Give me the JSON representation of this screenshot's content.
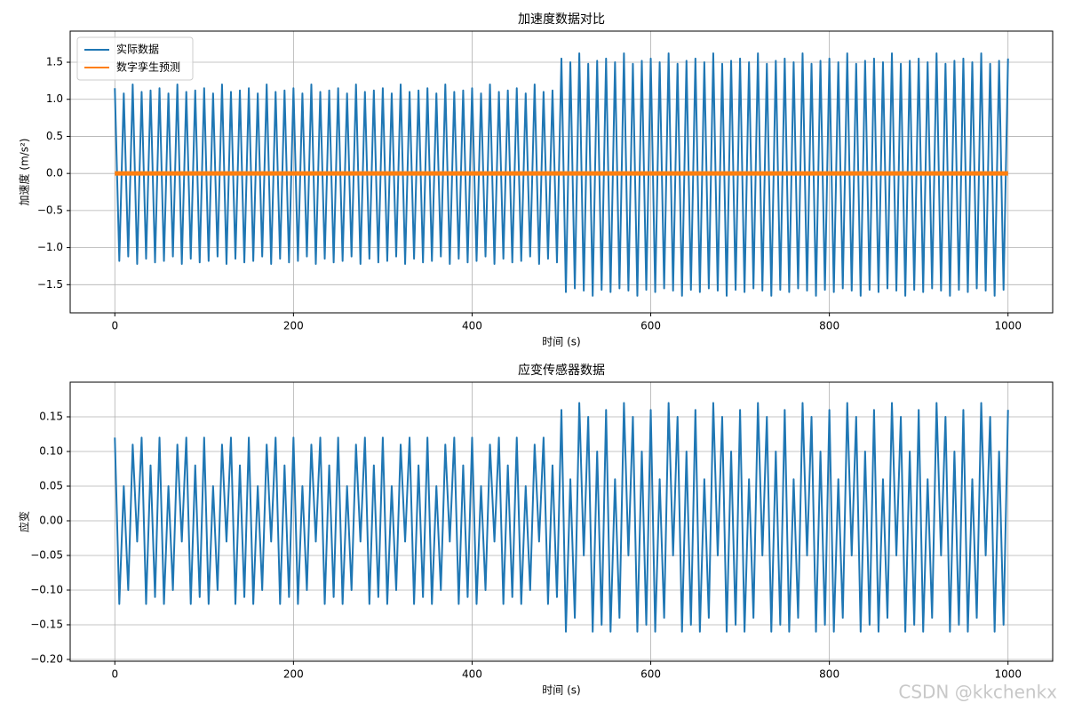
{
  "chart_data": [
    {
      "type": "line",
      "title": "加速度数据对比",
      "xlabel": "时间 (s)",
      "ylabel": "加速度 (m/s²)",
      "grid": true,
      "legend": "upper left",
      "xlim": [
        -50,
        1050
      ],
      "ylim": [
        -1.88,
        1.92
      ],
      "xticks": [
        0,
        200,
        400,
        600,
        800,
        1000
      ],
      "yticks": [
        {
          "value": -1.5,
          "label": "−1.5"
        },
        {
          "value": -1.0,
          "label": "−1.0"
        },
        {
          "value": -0.5,
          "label": "−0.5"
        },
        {
          "value": 0,
          "label": "0.0"
        },
        0.5,
        {
          "value": 1.0,
          "label": "1.0"
        },
        1.5
      ],
      "x": [
        0,
        5,
        10,
        15,
        20,
        25,
        30,
        35,
        40,
        45,
        50,
        55,
        60,
        65,
        70,
        75,
        80,
        85,
        90,
        95,
        100,
        105,
        110,
        115,
        120,
        125,
        130,
        135,
        140,
        145,
        150,
        155,
        160,
        165,
        170,
        175,
        180,
        185,
        190,
        195,
        200,
        205,
        210,
        215,
        220,
        225,
        230,
        235,
        240,
        245,
        250,
        255,
        260,
        265,
        270,
        275,
        280,
        285,
        290,
        295,
        300,
        305,
        310,
        315,
        320,
        325,
        330,
        335,
        340,
        345,
        350,
        355,
        360,
        365,
        370,
        375,
        380,
        385,
        390,
        395,
        400,
        405,
        410,
        415,
        420,
        425,
        430,
        435,
        440,
        445,
        450,
        455,
        460,
        465,
        470,
        475,
        480,
        485,
        490,
        495,
        500,
        505,
        510,
        515,
        520,
        525,
        530,
        535,
        540,
        545,
        550,
        555,
        560,
        565,
        570,
        575,
        580,
        585,
        590,
        595,
        600,
        605,
        610,
        615,
        620,
        625,
        630,
        635,
        640,
        645,
        650,
        655,
        660,
        665,
        670,
        675,
        680,
        685,
        690,
        695,
        700,
        705,
        710,
        715,
        720,
        725,
        730,
        735,
        740,
        745,
        750,
        755,
        760,
        765,
        770,
        775,
        780,
        785,
        790,
        795,
        800,
        805,
        810,
        815,
        820,
        825,
        830,
        835,
        840,
        845,
        850,
        855,
        860,
        865,
        870,
        875,
        880,
        885,
        890,
        895,
        900,
        905,
        910,
        915,
        920,
        925,
        930,
        935,
        940,
        945,
        950,
        955,
        960,
        965,
        970,
        975,
        980,
        985,
        990,
        995,
        1000
      ],
      "series": [
        {
          "name": "实际数据",
          "color": "#1f77b4",
          "width": 2,
          "values": [
            1.15,
            -1.18,
            1.08,
            -1.12,
            1.2,
            -1.22,
            1.1,
            -1.15,
            1.12,
            -1.2,
            1.15,
            -1.18,
            1.08,
            -1.12,
            1.2,
            -1.22,
            1.1,
            -1.15,
            1.12,
            -1.2,
            1.15,
            -1.18,
            1.08,
            -1.12,
            1.2,
            -1.22,
            1.1,
            -1.15,
            1.12,
            -1.2,
            1.15,
            -1.18,
            1.08,
            -1.12,
            1.2,
            -1.22,
            1.1,
            -1.15,
            1.12,
            -1.2,
            1.15,
            -1.18,
            1.08,
            -1.12,
            1.2,
            -1.22,
            1.1,
            -1.15,
            1.12,
            -1.2,
            1.15,
            -1.18,
            1.08,
            -1.12,
            1.2,
            -1.22,
            1.1,
            -1.15,
            1.12,
            -1.2,
            1.15,
            -1.18,
            1.08,
            -1.12,
            1.2,
            -1.22,
            1.1,
            -1.15,
            1.12,
            -1.2,
            1.15,
            -1.18,
            1.08,
            -1.12,
            1.2,
            -1.22,
            1.1,
            -1.15,
            1.12,
            -1.2,
            1.15,
            -1.18,
            1.08,
            -1.12,
            1.2,
            -1.22,
            1.1,
            -1.15,
            1.12,
            -1.2,
            1.15,
            -1.18,
            1.08,
            -1.12,
            1.2,
            -1.22,
            1.1,
            -1.15,
            1.12,
            -1.2,
            1.55,
            -1.6,
            1.5,
            -1.55,
            1.62,
            -1.58,
            1.48,
            -1.65,
            1.52,
            -1.57,
            1.55,
            -1.6,
            1.5,
            -1.55,
            1.62,
            -1.58,
            1.48,
            -1.65,
            1.52,
            -1.57,
            1.55,
            -1.6,
            1.5,
            -1.55,
            1.62,
            -1.58,
            1.48,
            -1.65,
            1.52,
            -1.57,
            1.55,
            -1.6,
            1.5,
            -1.55,
            1.62,
            -1.58,
            1.48,
            -1.65,
            1.52,
            -1.57,
            1.55,
            -1.6,
            1.5,
            -1.55,
            1.62,
            -1.58,
            1.48,
            -1.65,
            1.52,
            -1.57,
            1.55,
            -1.6,
            1.5,
            -1.55,
            1.62,
            -1.58,
            1.48,
            -1.65,
            1.52,
            -1.57,
            1.55,
            -1.6,
            1.5,
            -1.55,
            1.62,
            -1.58,
            1.48,
            -1.65,
            1.52,
            -1.57,
            1.55,
            -1.6,
            1.5,
            -1.55,
            1.62,
            -1.58,
            1.48,
            -1.65,
            1.52,
            -1.57,
            1.55,
            -1.6,
            1.5,
            -1.55,
            1.62,
            -1.58,
            1.48,
            -1.65,
            1.52,
            -1.57,
            1.55,
            -1.6,
            1.5,
            -1.55,
            1.62,
            -1.58,
            1.48,
            -1.65,
            1.52,
            -1.57,
            1.55
          ]
        },
        {
          "name": "数字孪生预测",
          "color": "#ff7f0e",
          "width": 5,
          "values": [
            0,
            0,
            0,
            0,
            0,
            0,
            0,
            0,
            0,
            0,
            0,
            0,
            0,
            0,
            0,
            0,
            0,
            0,
            0,
            0,
            0,
            0,
            0,
            0,
            0,
            0,
            0,
            0,
            0,
            0,
            0,
            0,
            0,
            0,
            0,
            0,
            0,
            0,
            0,
            0,
            0,
            0,
            0,
            0,
            0,
            0,
            0,
            0,
            0,
            0,
            0,
            0,
            0,
            0,
            0,
            0,
            0,
            0,
            0,
            0,
            0,
            0,
            0,
            0,
            0,
            0,
            0,
            0,
            0,
            0,
            0,
            0,
            0,
            0,
            0,
            0,
            0,
            0,
            0,
            0,
            0,
            0,
            0,
            0,
            0,
            0,
            0,
            0,
            0,
            0,
            0,
            0,
            0,
            0,
            0,
            0,
            0,
            0,
            0,
            0,
            0,
            0,
            0,
            0,
            0,
            0,
            0,
            0,
            0,
            0,
            0,
            0,
            0,
            0,
            0,
            0,
            0,
            0,
            0,
            0,
            0,
            0,
            0,
            0,
            0,
            0,
            0,
            0,
            0,
            0,
            0,
            0,
            0,
            0,
            0,
            0,
            0,
            0,
            0,
            0,
            0,
            0,
            0,
            0,
            0,
            0,
            0,
            0,
            0,
            0,
            0,
            0,
            0,
            0,
            0,
            0,
            0,
            0,
            0,
            0,
            0,
            0,
            0,
            0,
            0,
            0,
            0,
            0,
            0,
            0,
            0,
            0,
            0,
            0,
            0,
            0,
            0,
            0,
            0,
            0,
            0,
            0,
            0,
            0,
            0,
            0,
            0,
            0,
            0,
            0,
            0,
            0,
            0,
            0,
            0,
            0,
            0,
            0,
            0,
            0,
            0
          ]
        }
      ]
    },
    {
      "type": "line",
      "title": "应变传感器数据",
      "xlabel": "时间 (s)",
      "ylabel": "应变",
      "grid": true,
      "xlim": [
        -50,
        1050
      ],
      "ylim": [
        -0.2026,
        0.2
      ],
      "xticks": [
        0,
        200,
        400,
        600,
        800,
        1000
      ],
      "yticks": [
        {
          "value": -0.2,
          "label": "−0.20"
        },
        {
          "value": -0.15,
          "label": "−0.15"
        },
        {
          "value": -0.1,
          "label": "−0.10"
        },
        {
          "value": -0.05,
          "label": "−0.05"
        },
        {
          "value": 0,
          "label": "0.00"
        },
        0.05,
        {
          "value": 0.1,
          "label": "0.10"
        },
        0.15
      ],
      "x": [
        0,
        5,
        10,
        15,
        20,
        25,
        30,
        35,
        40,
        45,
        50,
        55,
        60,
        65,
        70,
        75,
        80,
        85,
        90,
        95,
        100,
        105,
        110,
        115,
        120,
        125,
        130,
        135,
        140,
        145,
        150,
        155,
        160,
        165,
        170,
        175,
        180,
        185,
        190,
        195,
        200,
        205,
        210,
        215,
        220,
        225,
        230,
        235,
        240,
        245,
        250,
        255,
        260,
        265,
        270,
        275,
        280,
        285,
        290,
        295,
        300,
        305,
        310,
        315,
        320,
        325,
        330,
        335,
        340,
        345,
        350,
        355,
        360,
        365,
        370,
        375,
        380,
        385,
        390,
        395,
        400,
        405,
        410,
        415,
        420,
        425,
        430,
        435,
        440,
        445,
        450,
        455,
        460,
        465,
        470,
        475,
        480,
        485,
        490,
        495,
        500,
        505,
        510,
        515,
        520,
        525,
        530,
        535,
        540,
        545,
        550,
        555,
        560,
        565,
        570,
        575,
        580,
        585,
        590,
        595,
        600,
        605,
        610,
        615,
        620,
        625,
        630,
        635,
        640,
        645,
        650,
        655,
        660,
        665,
        670,
        675,
        680,
        685,
        690,
        695,
        700,
        705,
        710,
        715,
        720,
        725,
        730,
        735,
        740,
        745,
        750,
        755,
        760,
        765,
        770,
        775,
        780,
        785,
        790,
        795,
        800,
        805,
        810,
        815,
        820,
        825,
        830,
        835,
        840,
        845,
        850,
        855,
        860,
        865,
        870,
        875,
        880,
        885,
        890,
        895,
        900,
        905,
        910,
        915,
        920,
        925,
        930,
        935,
        940,
        945,
        950,
        955,
        960,
        965,
        970,
        975,
        980,
        985,
        990,
        995,
        1000
      ],
      "series": [
        {
          "color": "#1f77b4",
          "width": 2,
          "values": [
            0.12,
            -0.12,
            0.05,
            -0.1,
            0.11,
            -0.03,
            0.12,
            -0.12,
            0.08,
            -0.11,
            0.12,
            -0.12,
            0.05,
            -0.1,
            0.11,
            -0.03,
            0.12,
            -0.12,
            0.08,
            -0.11,
            0.12,
            -0.12,
            0.05,
            -0.1,
            0.11,
            -0.03,
            0.12,
            -0.12,
            0.08,
            -0.11,
            0.12,
            -0.12,
            0.05,
            -0.1,
            0.11,
            -0.03,
            0.12,
            -0.12,
            0.08,
            -0.11,
            0.12,
            -0.12,
            0.05,
            -0.1,
            0.11,
            -0.03,
            0.12,
            -0.12,
            0.08,
            -0.11,
            0.12,
            -0.12,
            0.05,
            -0.1,
            0.11,
            -0.03,
            0.12,
            -0.12,
            0.08,
            -0.11,
            0.12,
            -0.12,
            0.05,
            -0.1,
            0.11,
            -0.03,
            0.12,
            -0.12,
            0.08,
            -0.11,
            0.12,
            -0.12,
            0.05,
            -0.1,
            0.11,
            -0.03,
            0.12,
            -0.12,
            0.08,
            -0.11,
            0.12,
            -0.12,
            0.05,
            -0.1,
            0.11,
            -0.03,
            0.12,
            -0.12,
            0.08,
            -0.11,
            0.12,
            -0.12,
            0.05,
            -0.1,
            0.11,
            -0.03,
            0.12,
            -0.12,
            0.08,
            -0.11,
            0.16,
            -0.16,
            0.06,
            -0.14,
            0.17,
            -0.05,
            0.15,
            -0.16,
            0.1,
            -0.15,
            0.16,
            -0.16,
            0.06,
            -0.14,
            0.17,
            -0.05,
            0.15,
            -0.16,
            0.1,
            -0.15,
            0.16,
            -0.16,
            0.06,
            -0.14,
            0.17,
            -0.05,
            0.15,
            -0.16,
            0.1,
            -0.15,
            0.16,
            -0.16,
            0.06,
            -0.14,
            0.17,
            -0.05,
            0.15,
            -0.16,
            0.1,
            -0.15,
            0.16,
            -0.16,
            0.06,
            -0.14,
            0.17,
            -0.05,
            0.15,
            -0.16,
            0.1,
            -0.15,
            0.16,
            -0.16,
            0.06,
            -0.14,
            0.17,
            -0.05,
            0.15,
            -0.16,
            0.1,
            -0.15,
            0.16,
            -0.16,
            0.06,
            -0.14,
            0.17,
            -0.05,
            0.15,
            -0.16,
            0.1,
            -0.15,
            0.16,
            -0.16,
            0.06,
            -0.14,
            0.17,
            -0.05,
            0.15,
            -0.16,
            0.1,
            -0.15,
            0.16,
            -0.16,
            0.06,
            -0.14,
            0.17,
            -0.05,
            0.15,
            -0.16,
            0.1,
            -0.15,
            0.16,
            -0.16,
            0.06,
            -0.14,
            0.17,
            -0.05,
            0.15,
            -0.16,
            0.1,
            -0.15,
            0.16
          ]
        }
      ]
    }
  ],
  "watermark": "CSDN @kkchenkx"
}
